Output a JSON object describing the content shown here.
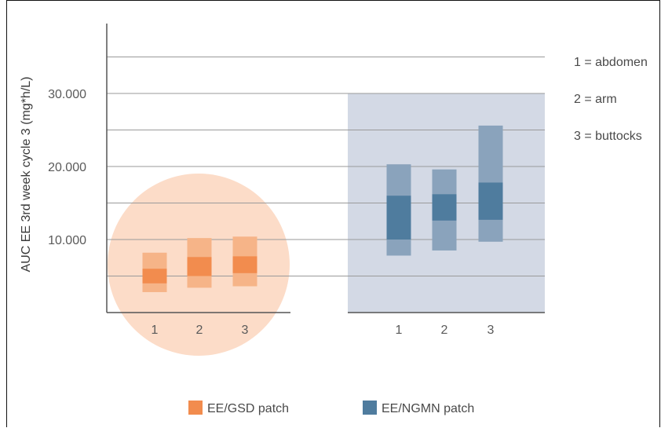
{
  "chart_data": {
    "type": "bar",
    "description_style": "floating range bars (outer range light, inner range dark)",
    "ylabel": "AUC EE 3rd week cycle 3 (mg*h/L)",
    "yticks": [
      "10.000",
      "20.000",
      "30.000"
    ],
    "ylim": [
      0,
      35000
    ],
    "grid": true,
    "categories": [
      "1",
      "2",
      "3"
    ],
    "legend_position": "bottom",
    "series": [
      {
        "name": "EE/GSD patch",
        "color_outer": "#f6b488",
        "color_inner": "#f28c4e",
        "background": "#fcdcc8",
        "outer": [
          [
            2800,
            8200
          ],
          [
            3400,
            10200
          ],
          [
            3600,
            10400
          ]
        ],
        "inner": [
          [
            4000,
            6000
          ],
          [
            5000,
            7600
          ],
          [
            5400,
            7700
          ]
        ]
      },
      {
        "name": "EE/NGMN patch",
        "color_outer": "#8aa3bc",
        "color_inner": "#4f7c9e",
        "background": "#d3d9e5",
        "outer": [
          [
            7800,
            20300
          ],
          [
            8500,
            19600
          ],
          [
            9700,
            25600
          ]
        ],
        "inner": [
          [
            10000,
            16000
          ],
          [
            12600,
            16200
          ],
          [
            12700,
            17800
          ]
        ]
      }
    ],
    "annotations": [
      "1 = abdomen",
      "2 = arm",
      "3 = buttocks"
    ]
  }
}
